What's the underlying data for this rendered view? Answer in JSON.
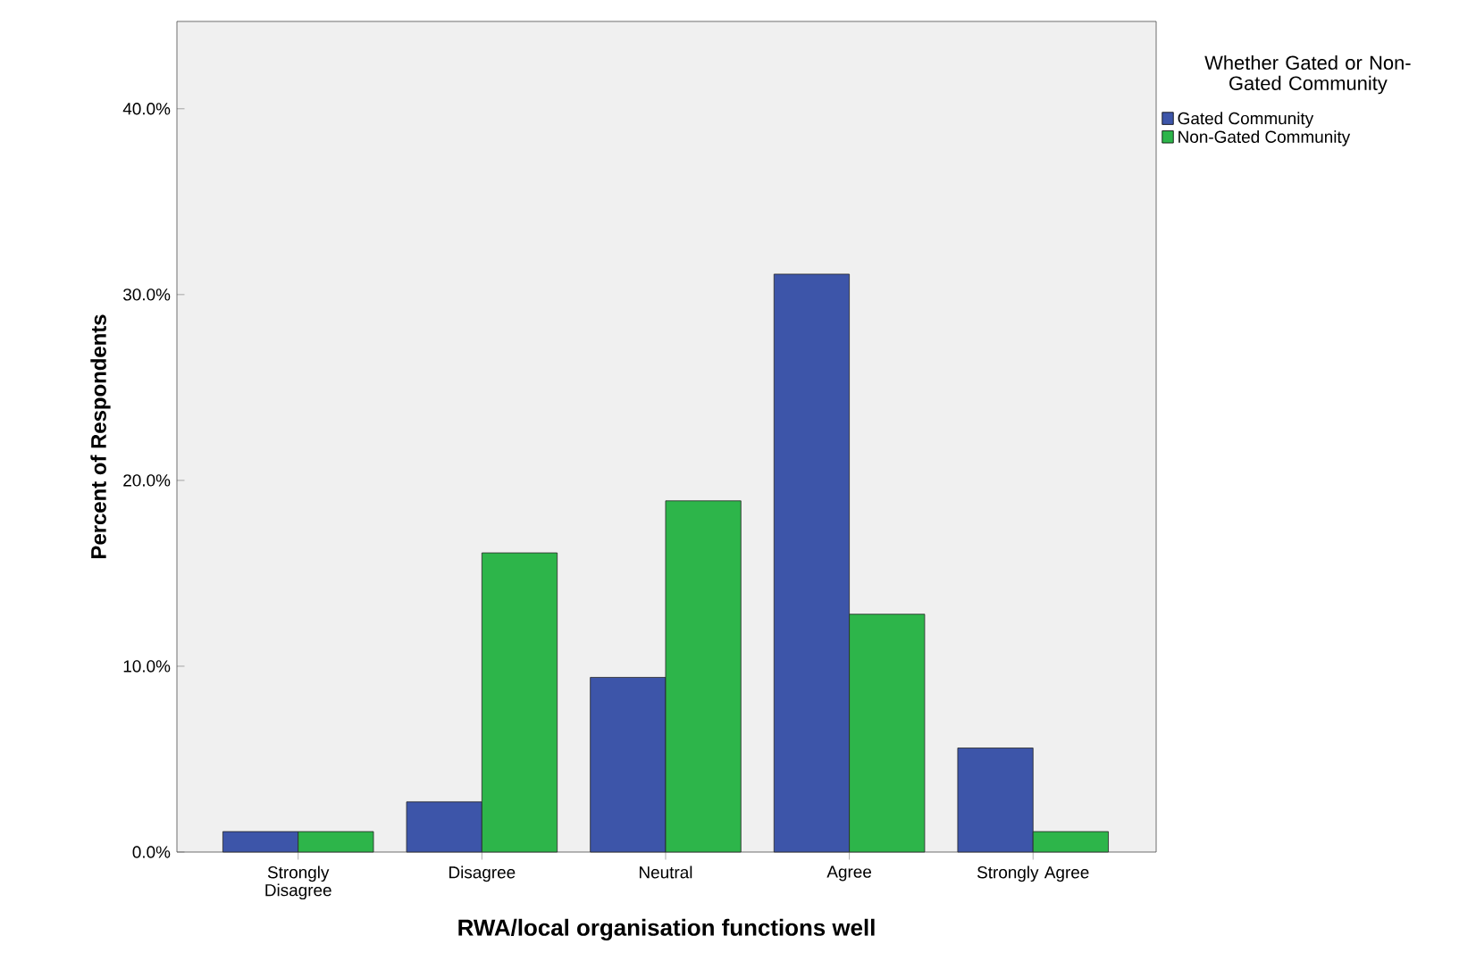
{
  "chart_data": {
    "type": "bar",
    "xlabel": "RWA/local organisation functions well",
    "ylabel": "Percent of Respondents",
    "legend_title": "Whether Gated or Non-Gated Community",
    "categories": [
      "Strongly Disagree",
      "Disagree",
      "Neutral",
      "Agree",
      "Strongly Agree"
    ],
    "series": [
      {
        "name": "Gated Community",
        "color": "#3d55a9",
        "values": [
          1.1,
          2.7,
          9.4,
          31.1,
          5.6
        ]
      },
      {
        "name": "Non-Gated Community",
        "color": "#2db54a",
        "values": [
          1.1,
          16.1,
          18.9,
          12.8,
          1.1
        ]
      }
    ],
    "ylim": [
      0,
      44.7
    ],
    "yticks": [
      {
        "value": 0,
        "label": "0.0%"
      },
      {
        "value": 10,
        "label": "10.0%"
      },
      {
        "value": 20,
        "label": "20.0%"
      },
      {
        "value": 30,
        "label": "30.0%"
      },
      {
        "value": 40,
        "label": "40.0%"
      }
    ],
    "legend": "top right",
    "grid": false
  }
}
